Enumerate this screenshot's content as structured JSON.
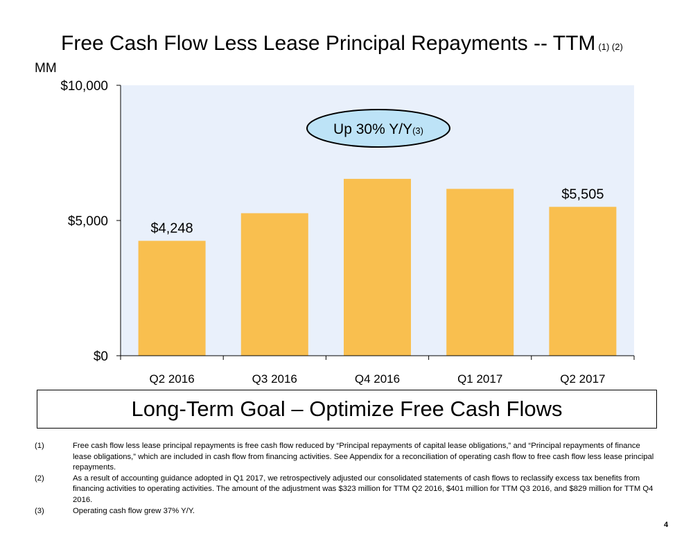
{
  "title": "Free Cash Flow Less Lease Principal Repayments -- TTM",
  "title_refs": "(1) (2)",
  "units_label": "MM",
  "callout": {
    "text": "Up 30% Y/Y",
    "ref": "(3)"
  },
  "chart_data": {
    "type": "bar",
    "categories": [
      "Q2 2016",
      "Q3 2016",
      "Q4 2016",
      "Q1 2017",
      "Q2 2017"
    ],
    "values": [
      4248,
      5270,
      6540,
      6170,
      5505
    ],
    "data_labels": [
      "$4,248",
      "",
      "",
      "",
      "$5,505"
    ],
    "ylim": [
      0,
      10000
    ],
    "yticks": [
      0,
      5000,
      10000
    ],
    "ytick_labels": [
      "$0",
      "$5,000",
      "$10,000"
    ],
    "bar_color": "#F9BF4F",
    "plot_background": "#E9F0FB",
    "grid": false
  },
  "goal_box": "Long-Term Goal – Optimize Free Cash Flows",
  "footnotes": [
    {
      "num": "(1)",
      "text": "Free cash flow less lease principal repayments is free cash flow reduced by “Principal repayments of capital lease obligations,” and “Principal repayments of finance lease obligations,” which are included in cash flow from financing activities. See Appendix for a reconciliation of operating cash flow to free cash flow less lease principal repayments."
    },
    {
      "num": "(2)",
      "text": "As a result of accounting guidance adopted in Q1 2017, we retrospectively adjusted our consolidated statements of cash flows to reclassify excess tax benefits from financing activities to operating activities. The amount of the adjustment was $323 million for TTM Q2 2016, $401 million for TTM Q3 2016, and $829 million for TTM Q4 2016."
    },
    {
      "num": "(3)",
      "text": "Operating cash flow grew 37% Y/Y."
    }
  ],
  "page_number": "4"
}
